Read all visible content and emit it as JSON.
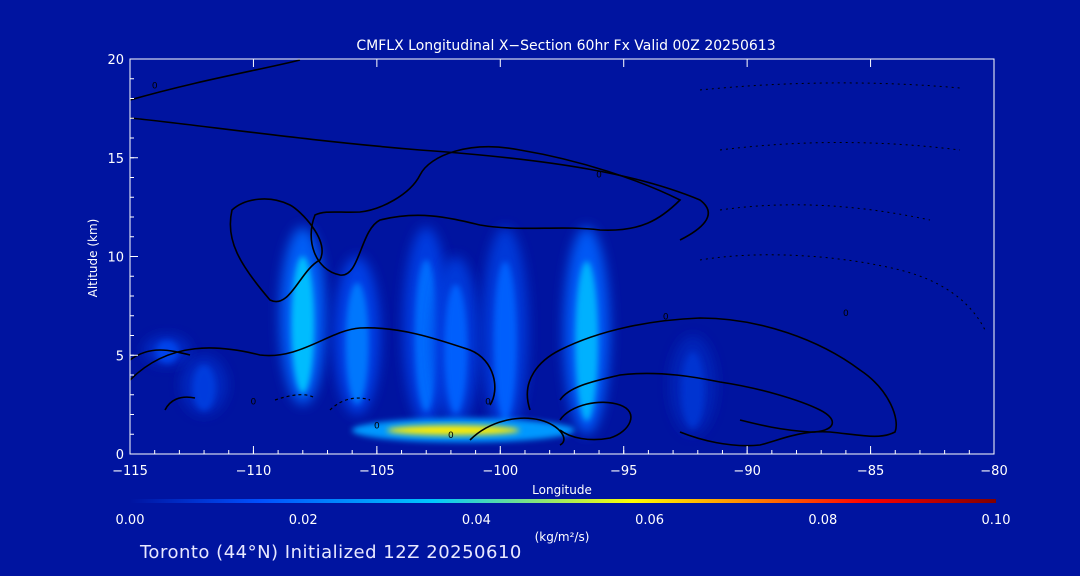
{
  "chart_data": {
    "type": "heatmap",
    "title": "CMFLX Longitudinal X−Section 60hr  Fx Valid 00Z 20250613",
    "xlabel": "Longitude",
    "ylabel": "Altitude (km)",
    "xlim": [
      -115,
      -80
    ],
    "ylim": [
      0,
      20
    ],
    "x_ticks": [
      -115,
      -110,
      -105,
      -100,
      -95,
      -90,
      -85,
      -80
    ],
    "x_tick_labels": [
      "−115",
      "−110",
      "−105",
      "−100",
      "−95",
      "−90",
      "−85",
      "−80"
    ],
    "y_ticks": [
      0,
      5,
      10,
      15,
      20
    ],
    "y_tick_labels": [
      "0",
      "5",
      "10",
      "15",
      "20"
    ],
    "colorbar": {
      "label": "(kg/m²/s)",
      "range": [
        0,
        0.1
      ],
      "ticks": [
        0,
        0.02,
        0.04,
        0.06,
        0.08,
        0.1
      ],
      "tick_labels": [
        "0.00",
        "0.02",
        "0.04",
        "0.06",
        "0.08",
        "0.10"
      ],
      "colors": [
        "#0014a0",
        "#0050ff",
        "#00c8ff",
        "#ffff00",
        "#ff8000",
        "#ff0000",
        "#800000"
      ]
    },
    "convective_cores": [
      {
        "lon": -113.5,
        "alt_bottom": 4.5,
        "alt_top": 6.0,
        "value": 0.012
      },
      {
        "lon": -112.0,
        "alt_bottom": 2.0,
        "alt_top": 5.0,
        "value": 0.01
      },
      {
        "lon": -108.0,
        "alt_bottom": 2.5,
        "alt_top": 11.5,
        "value": 0.034
      },
      {
        "lon": -105.8,
        "alt_bottom": 2.0,
        "alt_top": 10.0,
        "value": 0.022
      },
      {
        "lon": -103.0,
        "alt_bottom": 1.5,
        "alt_top": 11.5,
        "value": 0.02
      },
      {
        "lon": -101.8,
        "alt_bottom": 1.5,
        "alt_top": 10.0,
        "value": 0.018
      },
      {
        "lon": -99.8,
        "alt_bottom": 1.0,
        "alt_top": 11.5,
        "value": 0.018
      },
      {
        "lon": -96.5,
        "alt_bottom": 1.0,
        "alt_top": 11.5,
        "value": 0.032
      },
      {
        "lon": -92.2,
        "alt_bottom": 1.0,
        "alt_top": 6.0,
        "value": 0.008
      }
    ],
    "surface_maximum": {
      "lon_range": [
        -105.2,
        -97.8
      ],
      "alt": 1.0,
      "value": 0.06
    },
    "contour_labels": [
      {
        "text": "0",
        "lon": -114.0,
        "alt": 18.5
      },
      {
        "text": "0",
        "lon": -96.0,
        "alt": 14.0
      },
      {
        "text": "0",
        "lon": -93.3,
        "alt": 6.8
      },
      {
        "text": "0",
        "lon": -100.5,
        "alt": 2.5
      },
      {
        "text": "0",
        "lon": -110.0,
        "alt": 2.5
      },
      {
        "text": "0",
        "lon": -86.0,
        "alt": 7.0
      },
      {
        "text": "0",
        "lon": -102.0,
        "alt": 0.8
      },
      {
        "text": "0",
        "lon": -105.0,
        "alt": 1.3
      }
    ]
  },
  "footer": {
    "text": "Toronto (44°N) Initialized 12Z 20250610"
  }
}
